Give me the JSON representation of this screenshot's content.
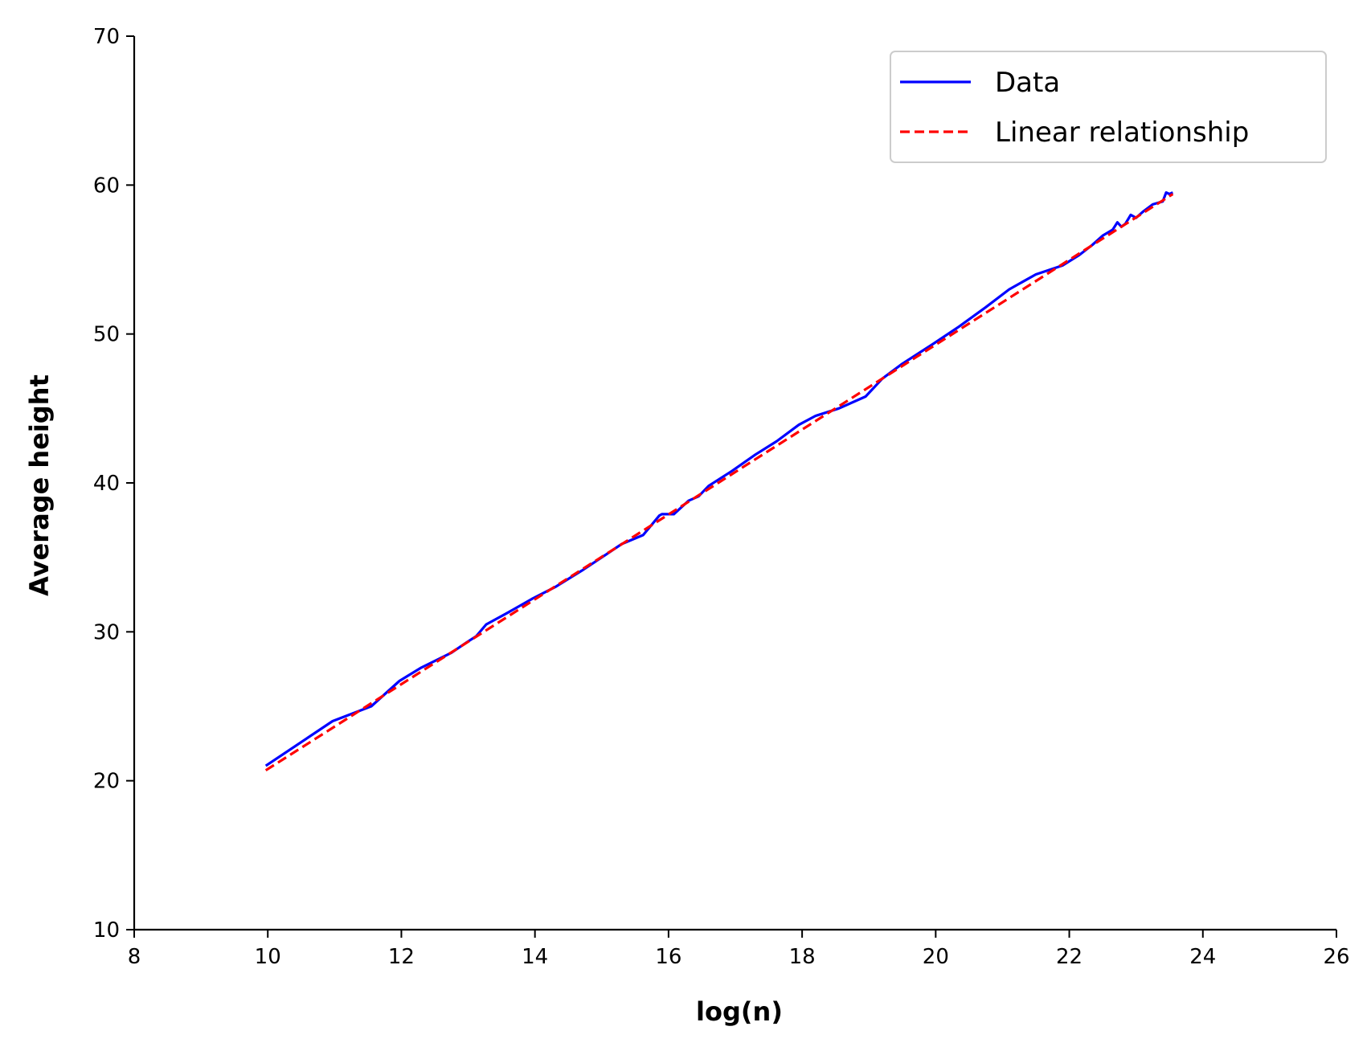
{
  "chart_data": {
    "type": "line",
    "title": "",
    "xlabel": "log(n)",
    "ylabel": "Average height",
    "xlim": [
      8,
      26
    ],
    "ylim": [
      10,
      70
    ],
    "xticks": [
      8,
      10,
      12,
      14,
      16,
      18,
      20,
      22,
      24,
      26
    ],
    "yticks": [
      10,
      20,
      30,
      40,
      50,
      60,
      70
    ],
    "grid": false,
    "legend_position": "top-right",
    "series": [
      {
        "name": "Data",
        "color": "#0000ff",
        "style": "solid",
        "x": [
          9.97,
          10.97,
          11.55,
          11.97,
          12.3,
          12.75,
          12.98,
          13.12,
          13.27,
          13.6,
          13.95,
          14.3,
          14.7,
          15.0,
          15.3,
          15.62,
          15.86,
          15.9,
          16.08,
          16.3,
          16.45,
          16.6,
          16.95,
          17.3,
          17.62,
          17.95,
          18.2,
          18.55,
          18.95,
          19.2,
          19.5,
          19.95,
          20.35,
          20.75,
          21.1,
          21.5,
          21.9,
          22.15,
          22.35,
          22.5,
          22.65,
          22.72,
          22.78,
          22.84,
          22.92,
          23.0,
          23.1,
          23.25,
          23.4,
          23.45,
          23.5,
          23.55
        ],
        "y": [
          21.0,
          24.0,
          25.0,
          26.7,
          27.6,
          28.6,
          29.3,
          29.7,
          30.5,
          31.3,
          32.2,
          33.0,
          34.1,
          35.0,
          35.9,
          36.5,
          37.8,
          37.9,
          37.9,
          38.8,
          39.1,
          39.8,
          40.8,
          41.9,
          42.8,
          43.9,
          44.5,
          45.0,
          45.8,
          47.0,
          48.0,
          49.3,
          50.5,
          51.8,
          53.0,
          54.0,
          54.6,
          55.3,
          56.0,
          56.6,
          57.0,
          57.5,
          57.2,
          57.4,
          58.0,
          57.8,
          58.2,
          58.7,
          58.9,
          59.5,
          59.4,
          59.5
        ]
      },
      {
        "name": "Linear relationship",
        "color": "#ff0000",
        "style": "dashed",
        "x": [
          9.97,
          23.55
        ],
        "y": [
          20.7,
          59.4
        ]
      }
    ]
  }
}
